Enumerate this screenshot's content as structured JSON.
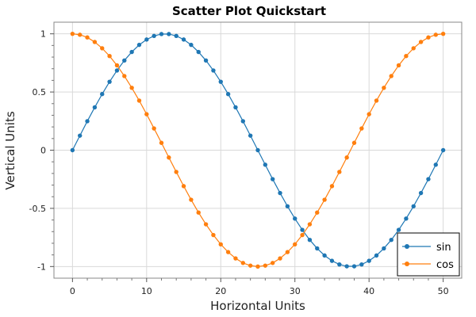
{
  "chart_data": {
    "type": "scatter",
    "title": "Scatter Plot Quickstart",
    "xlabel": "Horizontal Units",
    "ylabel": "Vertical Units",
    "xlim": [
      -2.5,
      52.5
    ],
    "ylim": [
      -1.1,
      1.1
    ],
    "x_ticks": [
      0,
      10,
      20,
      30,
      40,
      50
    ],
    "x_tick_labels": [
      "0",
      "10",
      "20",
      "30",
      "40",
      "50"
    ],
    "y_ticks": [
      -1,
      -0.5,
      0,
      0.5,
      1
    ],
    "y_tick_labels": [
      "-1",
      "-0.5",
      "0",
      "0.5",
      "1"
    ],
    "grid": true,
    "legend_position": "bottom-right",
    "x": [
      0,
      1,
      2,
      3,
      4,
      5,
      6,
      7,
      8,
      9,
      10,
      11,
      12,
      13,
      14,
      15,
      16,
      17,
      18,
      19,
      20,
      21,
      22,
      23,
      24,
      25,
      26,
      27,
      28,
      29,
      30,
      31,
      32,
      33,
      34,
      35,
      36,
      37,
      38,
      39,
      40,
      41,
      42,
      43,
      44,
      45,
      46,
      47,
      48,
      49,
      50
    ],
    "series": [
      {
        "name": "sin",
        "color": "#1f77b4",
        "values": [
          0.0,
          0.125,
          0.249,
          0.368,
          0.482,
          0.588,
          0.685,
          0.771,
          0.844,
          0.905,
          0.951,
          0.982,
          0.998,
          0.998,
          0.982,
          0.951,
          0.905,
          0.844,
          0.771,
          0.685,
          0.588,
          0.482,
          0.368,
          0.249,
          0.125,
          0.0,
          -0.125,
          -0.249,
          -0.368,
          -0.482,
          -0.588,
          -0.685,
          -0.771,
          -0.844,
          -0.905,
          -0.951,
          -0.982,
          -0.998,
          -0.998,
          -0.982,
          -0.951,
          -0.905,
          -0.844,
          -0.771,
          -0.685,
          -0.588,
          -0.482,
          -0.368,
          -0.249,
          -0.125,
          0.0
        ]
      },
      {
        "name": "cos",
        "color": "#ff7f0e",
        "values": [
          1.0,
          0.992,
          0.969,
          0.93,
          0.876,
          0.809,
          0.729,
          0.637,
          0.536,
          0.426,
          0.309,
          0.187,
          0.063,
          -0.063,
          -0.187,
          -0.309,
          -0.426,
          -0.536,
          -0.637,
          -0.729,
          -0.809,
          -0.876,
          -0.93,
          -0.969,
          -0.992,
          -1.0,
          -0.992,
          -0.969,
          -0.93,
          -0.876,
          -0.809,
          -0.729,
          -0.637,
          -0.536,
          -0.426,
          -0.309,
          -0.187,
          -0.063,
          0.063,
          0.187,
          0.309,
          0.426,
          0.536,
          0.637,
          0.729,
          0.809,
          0.876,
          0.93,
          0.969,
          0.992,
          1.0
        ]
      }
    ]
  }
}
